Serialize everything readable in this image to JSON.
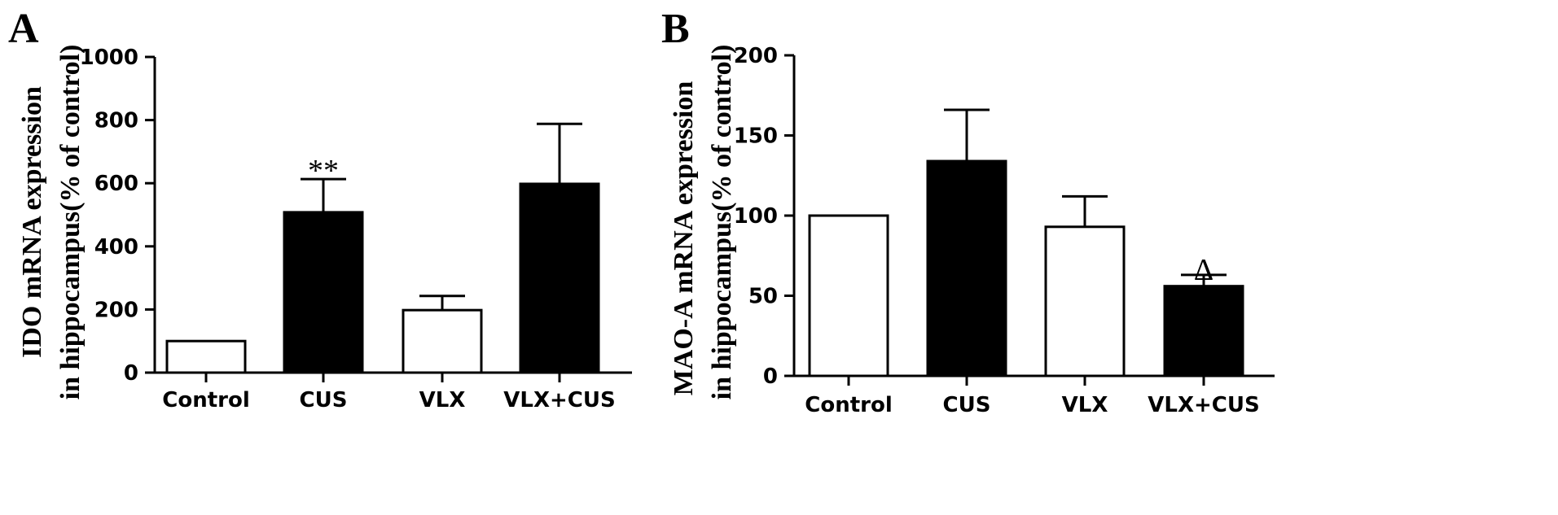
{
  "chart_data": [
    {
      "type": "bar",
      "panel": "A",
      "ylabel_lines": [
        "IDO mRNA expression",
        "in hippocampus(% of control)"
      ],
      "categories": [
        "Control",
        "CUS",
        "VLX",
        "VLX+CUS"
      ],
      "values": [
        100,
        508,
        198,
        598
      ],
      "errors": [
        0,
        105,
        45,
        190
      ],
      "bar_colors": [
        "#ffffff",
        "#000000",
        "#ffffff",
        "#000000"
      ],
      "annotations": [
        "",
        "**",
        "",
        ""
      ],
      "ylim": [
        0,
        1000
      ],
      "yticks": [
        0,
        200,
        400,
        600,
        800,
        1000
      ],
      "grid": false
    },
    {
      "type": "bar",
      "panel": "B",
      "ylabel_lines": [
        "MAO-A mRNA expression",
        "in hippocampus(% of control)"
      ],
      "categories": [
        "Control",
        "CUS",
        "VLX",
        "VLX+CUS"
      ],
      "values": [
        100,
        134,
        93,
        56
      ],
      "errors": [
        0,
        32,
        19,
        7
      ],
      "bar_colors": [
        "#ffffff",
        "#000000",
        "#ffffff",
        "#000000"
      ],
      "annotations": [
        "",
        "",
        "",
        "Δ"
      ],
      "ylim": [
        0,
        200
      ],
      "yticks": [
        0,
        50,
        100,
        150,
        200
      ],
      "grid": false
    }
  ]
}
